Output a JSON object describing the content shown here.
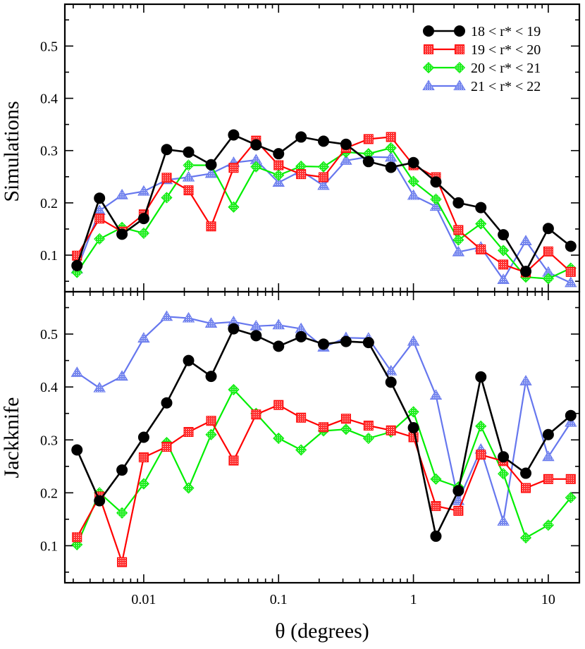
{
  "chart_data": {
    "type": "line",
    "xscale": "log",
    "xlim": [
      0.0026,
      17
    ],
    "xticks": [
      0.01,
      0.1,
      1,
      10
    ],
    "xtick_labels": [
      "0.01",
      "0.1",
      "1",
      "10"
    ],
    "xlabel": "θ (degrees)",
    "x": [
      0.0032,
      0.0047,
      0.0069,
      0.01,
      0.0148,
      0.0215,
      0.0316,
      0.0464,
      0.0681,
      0.1,
      0.1468,
      0.2154,
      0.3162,
      0.4642,
      0.6813,
      1.0,
      1.4678,
      2.1544,
      3.1623,
      4.6416,
      6.8129,
      10.0,
      14.678
    ],
    "legend": [
      "18 < r* < 19",
      "19 < r* < 20",
      "20 < r* < 21",
      "21 < r* < 22"
    ],
    "colors": [
      "#000000",
      "#ff0000",
      "#00ee00",
      "#6677ee"
    ],
    "panels": [
      {
        "ylabel": "Simulations",
        "ylim": [
          0.03,
          0.58
        ],
        "yticks": [
          0.1,
          0.2,
          0.3,
          0.4,
          0.5
        ],
        "ytick_labels": [
          "0.1",
          "0.2",
          "0.3",
          "0.4",
          "0.5"
        ],
        "series": [
          {
            "name": "18 < r* < 19",
            "values": [
              0.08,
              0.209,
              0.14,
              0.17,
              0.302,
              0.297,
              0.273,
              0.33,
              0.311,
              0.294,
              0.326,
              0.318,
              0.312,
              0.279,
              0.268,
              0.277,
              0.24,
              0.2,
              0.191,
              0.139,
              0.069,
              0.151,
              0.117
            ]
          },
          {
            "name": "19 < r* < 20",
            "values": [
              0.099,
              0.17,
              0.145,
              0.178,
              0.248,
              0.224,
              0.155,
              0.267,
              0.319,
              0.272,
              0.255,
              0.249,
              0.305,
              0.322,
              0.326,
              0.272,
              0.249,
              0.148,
              0.111,
              0.082,
              0.067,
              0.107,
              0.068
            ]
          },
          {
            "name": "20 < r* < 21",
            "values": [
              0.067,
              0.131,
              0.153,
              0.142,
              0.21,
              0.272,
              0.272,
              0.192,
              0.269,
              0.253,
              0.27,
              0.269,
              0.297,
              0.294,
              0.305,
              0.241,
              0.207,
              0.129,
              0.16,
              0.109,
              0.058,
              0.055,
              0.075
            ]
          },
          {
            "name": "21 < r* < 22",
            "values": [
              0.073,
              0.185,
              0.215,
              0.222,
              0.244,
              0.249,
              0.256,
              0.277,
              0.282,
              0.239,
              0.261,
              0.233,
              0.281,
              0.288,
              0.287,
              0.214,
              0.193,
              0.106,
              0.115,
              0.053,
              0.127,
              0.067,
              0.047
            ]
          }
        ]
      },
      {
        "ylabel": "Jackknife",
        "ylim": [
          0.03,
          0.58
        ],
        "yticks": [
          0.1,
          0.2,
          0.3,
          0.4,
          0.5
        ],
        "ytick_labels": [
          "0.1",
          "0.2",
          "0.3",
          "0.4",
          "0.5"
        ],
        "series": [
          {
            "name": "18 < r* < 19",
            "values": [
              0.281,
              0.185,
              0.243,
              0.305,
              0.37,
              0.45,
              0.42,
              0.51,
              0.497,
              0.477,
              0.495,
              0.481,
              0.486,
              0.484,
              0.409,
              0.323,
              0.118,
              0.204,
              0.419,
              0.268,
              0.237,
              0.31,
              0.346
            ]
          },
          {
            "name": "19 < r* < 20",
            "values": [
              0.116,
              0.193,
              0.069,
              0.267,
              0.287,
              0.315,
              0.336,
              0.261,
              0.348,
              0.366,
              0.342,
              0.324,
              0.34,
              0.327,
              0.318,
              0.305,
              0.175,
              0.166,
              0.272,
              0.26,
              0.209,
              0.226,
              0.226
            ]
          },
          {
            "name": "20 < r* < 21",
            "values": [
              0.102,
              0.2,
              0.162,
              0.217,
              0.295,
              0.209,
              0.31,
              0.395,
              0.35,
              0.303,
              0.281,
              0.317,
              0.32,
              0.303,
              0.315,
              0.353,
              0.226,
              0.211,
              0.326,
              0.236,
              0.115,
              0.139,
              0.191
            ]
          },
          {
            "name": "21 < r* < 22",
            "values": [
              0.427,
              0.398,
              0.42,
              0.492,
              0.533,
              0.53,
              0.52,
              0.523,
              0.515,
              0.517,
              0.51,
              0.475,
              0.493,
              0.492,
              0.43,
              0.486,
              0.384,
              0.185,
              0.282,
              0.146,
              0.411,
              0.268,
              0.333
            ]
          }
        ]
      }
    ]
  }
}
